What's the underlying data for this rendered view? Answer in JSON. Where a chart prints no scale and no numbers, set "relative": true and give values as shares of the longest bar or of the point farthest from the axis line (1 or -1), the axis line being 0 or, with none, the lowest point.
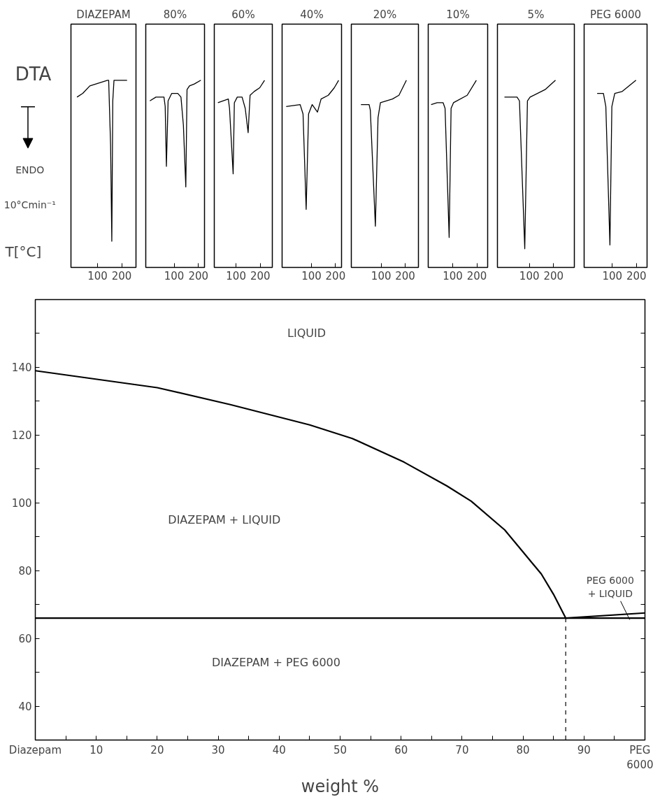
{
  "chart_data": [
    {
      "type": "line",
      "relative": true,
      "title": "DIAZEPAM",
      "xlabel": "T[°C]",
      "ylabel": "DTA",
      "annotations": [
        "ENDO",
        "10°Cmin⁻¹"
      ],
      "xlim": [
        -10,
        259
      ],
      "xticks": [
        100,
        200
      ],
      "tick_labels": "x",
      "grid": false,
      "color": "#000000",
      "x": [
        15,
        39,
        68,
        141,
        146,
        154,
        159,
        163,
        168,
        222
      ],
      "values": [
        0.91,
        0.93,
        0.97,
        1,
        1,
        0.65,
        0.14,
        0.89,
        1,
        1
      ]
    },
    {
      "type": "line",
      "relative": true,
      "title": "80%",
      "xlim": [
        -17,
        225
      ],
      "xticks": [
        100,
        200
      ],
      "tick_labels": "x",
      "grid": false,
      "color": "#000000",
      "x": [
        0,
        25,
        58,
        63,
        68,
        75,
        90,
        115,
        128,
        138,
        148,
        153,
        163,
        183,
        210
      ],
      "values": [
        0.89,
        0.91,
        0.91,
        0.86,
        0.54,
        0.89,
        0.93,
        0.93,
        0.91,
        0.76,
        0.43,
        0.95,
        0.97,
        0.98,
        1
      ]
    },
    {
      "type": "line",
      "relative": true,
      "title": "60%",
      "xlim": [
        10,
        250
      ],
      "xticks": [
        100,
        200
      ],
      "tick_labels": "x",
      "grid": false,
      "color": "#000000",
      "x": [
        25,
        68,
        73,
        88,
        93,
        105,
        125,
        138,
        150,
        158,
        175,
        198,
        218
      ],
      "values": [
        0.88,
        0.9,
        0.85,
        0.5,
        0.88,
        0.91,
        0.91,
        0.85,
        0.72,
        0.92,
        0.94,
        0.96,
        1
      ]
    },
    {
      "type": "line",
      "relative": true,
      "title": "40%",
      "xlim": [
        -22,
        225
      ],
      "xticks": [
        100,
        200
      ],
      "tick_labels": "x",
      "grid": false,
      "color": "#000000",
      "x": [
        -5,
        53,
        65,
        78,
        88,
        103,
        125,
        140,
        170,
        195,
        213
      ],
      "values": [
        0.86,
        0.87,
        0.82,
        0.31,
        0.82,
        0.87,
        0.83,
        0.9,
        0.92,
        0.96,
        1
      ]
    },
    {
      "type": "line",
      "relative": true,
      "title": "20%",
      "xlim": [
        -24,
        255
      ],
      "xticks": [
        100,
        200
      ],
      "tick_labels": "x",
      "grid": false,
      "color": "#000000",
      "x": [
        16,
        50,
        55,
        76,
        87,
        97,
        147,
        174,
        205
      ],
      "values": [
        0.87,
        0.87,
        0.84,
        0.22,
        0.8,
        0.88,
        0.9,
        0.92,
        1
      ]
    },
    {
      "type": "line",
      "relative": true,
      "title": "10%",
      "xlim": [
        -2,
        245
      ],
      "xticks": [
        100,
        200
      ],
      "tick_labels": "x",
      "grid": false,
      "color": "#000000",
      "x": [
        10,
        35,
        60,
        68,
        85,
        93,
        103,
        160,
        198
      ],
      "values": [
        0.87,
        0.88,
        0.88,
        0.85,
        0.16,
        0.85,
        0.88,
        0.92,
        1
      ]
    },
    {
      "type": "line",
      "relative": true,
      "title": "5%",
      "xlim": [
        -32,
        286
      ],
      "xticks": [
        100,
        200
      ],
      "tick_labels": "x",
      "grid": false,
      "color": "#000000",
      "x": [
        -3,
        49,
        59,
        81,
        92,
        103,
        165,
        208
      ],
      "values": [
        0.91,
        0.91,
        0.89,
        0.1,
        0.89,
        0.91,
        0.95,
        1
      ]
    },
    {
      "type": "line",
      "relative": true,
      "title": "PEG 6000",
      "xlim": [
        -17,
        244
      ],
      "xticks": [
        100,
        200
      ],
      "tick_labels": "x",
      "grid": false,
      "color": "#000000",
      "x": [
        37,
        63,
        73,
        90,
        98,
        110,
        141,
        198
      ],
      "values": [
        0.93,
        0.93,
        0.86,
        0.12,
        0.86,
        0.93,
        0.94,
        1
      ]
    },
    {
      "type": "line",
      "xlabel": "weight %",
      "xlim": [
        0,
        100
      ],
      "ylim": [
        30,
        160
      ],
      "grid": false,
      "xticks": [
        {
          "value": 0,
          "label": "Diazepam"
        },
        {
          "value": 5,
          "label": null
        },
        10,
        {
          "value": 15,
          "label": null
        },
        20,
        {
          "value": 25,
          "label": null
        },
        30,
        {
          "value": 35,
          "label": null
        },
        40,
        {
          "value": 45,
          "label": null
        },
        50,
        {
          "value": 55,
          "label": null
        },
        60,
        {
          "value": 65,
          "label": null
        },
        70,
        {
          "value": 75,
          "label": null
        },
        80,
        {
          "value": 85,
          "label": null
        },
        90,
        {
          "value": 95,
          "label": null
        },
        {
          "value": 100,
          "label": "PEG\n6000"
        }
      ],
      "yticks": [
        40,
        {
          "value": 50,
          "label": null
        },
        60,
        {
          "value": 70,
          "label": null
        },
        80,
        {
          "value": 90,
          "label": null
        },
        100,
        {
          "value": 110,
          "label": null
        },
        120,
        {
          "value": 130,
          "label": null
        },
        140,
        {
          "value": 150,
          "label": null
        }
      ],
      "annotations": [
        "LIQUID",
        "DIAZEPAM + LIQUID",
        "DIAZEPAM + PEG 6000",
        {
          "text": "PEG 6000\n+ LIQUID",
          "x": 97.5,
          "y": 65.5
        }
      ],
      "series": [
        {
          "color": "#000000",
          "x": [
            0,
            20,
            32,
            45,
            52,
            60.5,
            67.5,
            71.5,
            77,
            80,
            83,
            85,
            87
          ],
          "values": [
            139,
            134,
            129,
            123,
            119,
            112,
            105,
            100.5,
            92,
            85.5,
            79,
            73,
            66
          ]
        },
        {
          "color": "#000000",
          "x": [
            0,
            100
          ],
          "values": [
            66,
            66
          ]
        },
        {
          "color": "#000000",
          "x": [
            87,
            100
          ],
          "values": [
            66,
            67.5
          ]
        },
        {
          "color": "#000000",
          "x": [
            87,
            87
          ],
          "values": [
            66,
            30
          ],
          "line_style": "dashed"
        }
      ]
    }
  ]
}
